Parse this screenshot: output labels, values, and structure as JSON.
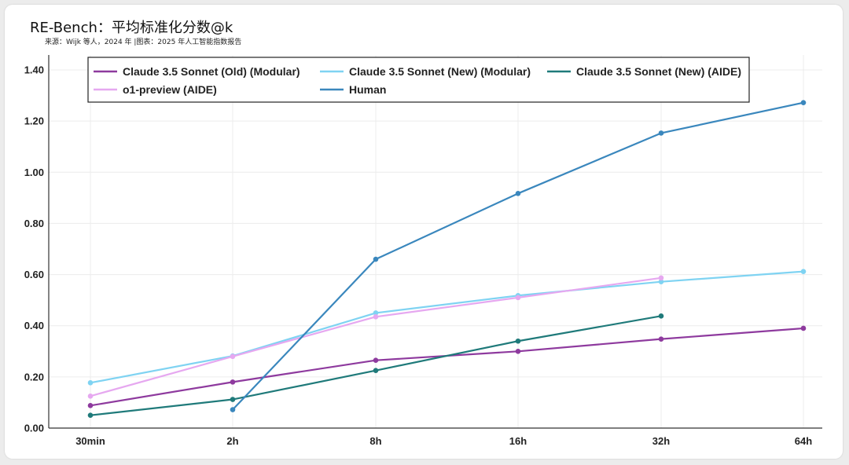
{
  "chart_data": {
    "type": "line",
    "title": "RE-Bench：平均标准化分数@k",
    "subtitle": "来源：Wijk 等人，2024 年 |图表：2025 年人工智能指数报告",
    "categories": [
      "30min",
      "2h",
      "8h",
      "16h",
      "32h",
      "64h"
    ],
    "ylim": [
      0,
      1.4
    ],
    "yticks": [
      "0.00",
      "0.20",
      "0.40",
      "0.60",
      "0.80",
      "1.00",
      "1.20",
      "1.40"
    ],
    "grid": true,
    "legend_placement": "top",
    "series": [
      {
        "name": "Claude 3.5 Sonnet (Old) (Modular)",
        "color": "#8e3a9e",
        "values": [
          0.088,
          0.18,
          0.265,
          0.3,
          0.348,
          0.39
        ]
      },
      {
        "name": "Claude 3.5 Sonnet (New) (Modular)",
        "color": "#7fd3f2",
        "values": [
          0.177,
          0.282,
          0.45,
          0.518,
          0.572,
          0.612
        ]
      },
      {
        "name": "Claude 3.5 Sonnet (New) (AIDE)",
        "color": "#1f7a7a",
        "values": [
          0.05,
          0.112,
          0.225,
          0.34,
          0.438,
          null
        ]
      },
      {
        "name": "o1-preview (AIDE)",
        "color": "#e6a8f0",
        "values": [
          0.125,
          0.28,
          0.435,
          0.51,
          0.587,
          null
        ]
      },
      {
        "name": "Human",
        "color": "#3a87bd",
        "values": [
          null,
          0.072,
          0.66,
          0.917,
          1.153,
          1.272
        ]
      }
    ]
  }
}
